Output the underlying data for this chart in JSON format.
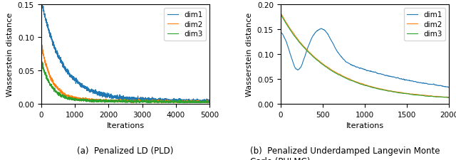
{
  "plot1": {
    "title": "(a)  Penalized LD (PLD)",
    "xlabel": "Iterations",
    "ylabel": "Wasserstein distance",
    "xlim": [
      0,
      5000
    ],
    "ylim": [
      0,
      0.15
    ],
    "yticks": [
      0.0,
      0.05,
      0.1,
      0.15
    ],
    "xticks": [
      0,
      1000,
      2000,
      3000,
      4000,
      5000
    ],
    "n_points": 5000
  },
  "plot2": {
    "title": "(b)  Penalized Underdamped Langevin Monte\nCarlo (PULMC)",
    "xlabel": "Iterations",
    "ylabel": "Wasserstein distance",
    "xlim": [
      0,
      2000
    ],
    "ylim": [
      0,
      0.2
    ],
    "yticks": [
      0.0,
      0.05,
      0.1,
      0.15,
      0.2
    ],
    "xticks": [
      0,
      500,
      1000,
      1500,
      2000
    ],
    "n_points": 2000
  },
  "colors": {
    "dim1": "#1f77b4",
    "dim2": "#ff7f0e",
    "dim3": "#2ca02c"
  },
  "linewidth": 0.8,
  "legend_labels": [
    "dim1",
    "dim2",
    "dim3"
  ]
}
